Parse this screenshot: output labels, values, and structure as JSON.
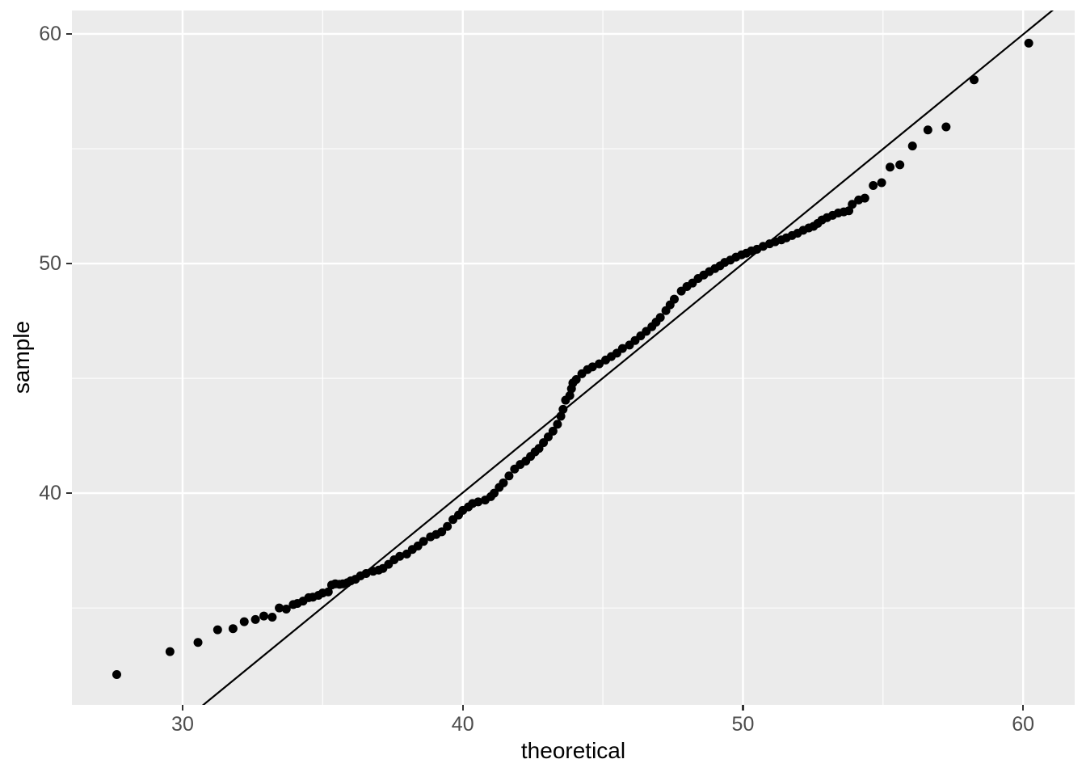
{
  "chart_data": {
    "type": "scatter",
    "title": "",
    "xlabel": "theoretical",
    "ylabel": "sample",
    "xlim": [
      26.05,
      61.84
    ],
    "ylim": [
      30.78,
      61.02
    ],
    "grid": true,
    "legend": "none",
    "x_major_ticks": {
      "values": [
        30,
        40,
        50,
        60
      ],
      "labels": [
        "30",
        "40",
        "50",
        "60"
      ]
    },
    "y_major_ticks": {
      "values": [
        40,
        50,
        60
      ],
      "labels": [
        "40",
        "50",
        "60"
      ]
    },
    "x_minor_ticks": [
      35,
      45,
      55
    ],
    "y_minor_ticks": [
      35,
      45,
      55
    ],
    "reference_line": {
      "slope": 0.998,
      "intercept": 0.1
    },
    "point_radius": 5.5,
    "points": [
      [
        27.65,
        32.1
      ],
      [
        29.55,
        33.1
      ],
      [
        30.55,
        33.5
      ],
      [
        31.25,
        34.05
      ],
      [
        31.8,
        34.1
      ],
      [
        32.2,
        34.4
      ],
      [
        32.6,
        34.5
      ],
      [
        32.9,
        34.65
      ],
      [
        33.2,
        34.6
      ],
      [
        33.45,
        35.0
      ],
      [
        33.7,
        34.95
      ],
      [
        33.95,
        35.15
      ],
      [
        34.1,
        35.2
      ],
      [
        34.3,
        35.3
      ],
      [
        34.5,
        35.45
      ],
      [
        34.65,
        35.47
      ],
      [
        34.85,
        35.55
      ],
      [
        35.0,
        35.65
      ],
      [
        35.2,
        35.7
      ],
      [
        35.32,
        36.0
      ],
      [
        35.45,
        36.05
      ],
      [
        35.6,
        36.03
      ],
      [
        35.72,
        36.05
      ],
      [
        35.88,
        36.1
      ],
      [
        36.0,
        36.18
      ],
      [
        36.17,
        36.25
      ],
      [
        36.35,
        36.4
      ],
      [
        36.55,
        36.5
      ],
      [
        36.8,
        36.6
      ],
      [
        37.0,
        36.65
      ],
      [
        37.15,
        36.72
      ],
      [
        37.35,
        36.9
      ],
      [
        37.55,
        37.1
      ],
      [
        37.75,
        37.25
      ],
      [
        38.0,
        37.35
      ],
      [
        38.2,
        37.55
      ],
      [
        38.4,
        37.7
      ],
      [
        38.6,
        37.9
      ],
      [
        38.85,
        38.1
      ],
      [
        39.05,
        38.2
      ],
      [
        39.25,
        38.32
      ],
      [
        39.45,
        38.55
      ],
      [
        39.65,
        38.85
      ],
      [
        39.85,
        39.05
      ],
      [
        40.0,
        39.25
      ],
      [
        40.2,
        39.4
      ],
      [
        40.35,
        39.55
      ],
      [
        40.55,
        39.62
      ],
      [
        40.8,
        39.7
      ],
      [
        41.0,
        39.85
      ],
      [
        41.12,
        40.0
      ],
      [
        41.3,
        40.25
      ],
      [
        41.45,
        40.45
      ],
      [
        41.65,
        40.75
      ],
      [
        41.85,
        41.05
      ],
      [
        42.05,
        41.25
      ],
      [
        42.25,
        41.4
      ],
      [
        42.42,
        41.6
      ],
      [
        42.58,
        41.8
      ],
      [
        42.72,
        41.95
      ],
      [
        42.88,
        42.2
      ],
      [
        43.05,
        42.45
      ],
      [
        43.22,
        42.7
      ],
      [
        43.38,
        43.0
      ],
      [
        43.5,
        43.35
      ],
      [
        43.58,
        43.65
      ],
      [
        43.67,
        44.05
      ],
      [
        43.82,
        44.25
      ],
      [
        43.88,
        44.55
      ],
      [
        43.93,
        44.8
      ],
      [
        44.05,
        44.95
      ],
      [
        44.25,
        45.2
      ],
      [
        44.45,
        45.38
      ],
      [
        44.63,
        45.5
      ],
      [
        44.87,
        45.63
      ],
      [
        45.1,
        45.8
      ],
      [
        45.3,
        45.95
      ],
      [
        45.5,
        46.1
      ],
      [
        45.7,
        46.3
      ],
      [
        45.95,
        46.45
      ],
      [
        46.15,
        46.65
      ],
      [
        46.35,
        46.85
      ],
      [
        46.55,
        47.05
      ],
      [
        46.75,
        47.25
      ],
      [
        46.9,
        47.45
      ],
      [
        47.05,
        47.65
      ],
      [
        47.25,
        47.95
      ],
      [
        47.4,
        48.2
      ],
      [
        47.55,
        48.45
      ],
      [
        47.8,
        48.8
      ],
      [
        48.0,
        49.0
      ],
      [
        48.2,
        49.15
      ],
      [
        48.4,
        49.35
      ],
      [
        48.6,
        49.5
      ],
      [
        48.8,
        49.65
      ],
      [
        49.0,
        49.78
      ],
      [
        49.18,
        49.9
      ],
      [
        49.35,
        50.05
      ],
      [
        49.55,
        50.15
      ],
      [
        49.75,
        50.28
      ],
      [
        49.95,
        50.38
      ],
      [
        50.12,
        50.45
      ],
      [
        50.3,
        50.55
      ],
      [
        50.5,
        50.62
      ],
      [
        50.72,
        50.75
      ],
      [
        50.95,
        50.86
      ],
      [
        51.15,
        50.95
      ],
      [
        51.37,
        51.03
      ],
      [
        51.55,
        51.12
      ],
      [
        51.75,
        51.22
      ],
      [
        51.95,
        51.32
      ],
      [
        52.15,
        51.45
      ],
      [
        52.35,
        51.55
      ],
      [
        52.52,
        51.62
      ],
      [
        52.67,
        51.75
      ],
      [
        52.82,
        51.9
      ],
      [
        53.0,
        52.0
      ],
      [
        53.2,
        52.1
      ],
      [
        53.4,
        52.2
      ],
      [
        53.6,
        52.25
      ],
      [
        53.78,
        52.3
      ],
      [
        53.9,
        52.58
      ],
      [
        54.13,
        52.77
      ],
      [
        54.35,
        52.85
      ],
      [
        54.65,
        53.4
      ],
      [
        54.95,
        53.52
      ],
      [
        55.25,
        54.2
      ],
      [
        55.6,
        54.3
      ],
      [
        56.05,
        55.12
      ],
      [
        56.6,
        55.82
      ],
      [
        57.25,
        55.95
      ],
      [
        58.25,
        58.0
      ],
      [
        60.2,
        59.6
      ]
    ]
  },
  "style": {
    "panel_bg": "#EBEBEB",
    "figure_bg": "#FFFFFF",
    "grid_color": "#FFFFFF",
    "major_grid_width": 2.4,
    "minor_grid_width": 1.1,
    "point_color": "#000000",
    "line_color": "#000000",
    "line_width": 2.2,
    "tick_label_color": "#4D4D4D",
    "axis_title_color": "#000000",
    "tick_mark_color": "#333333"
  }
}
